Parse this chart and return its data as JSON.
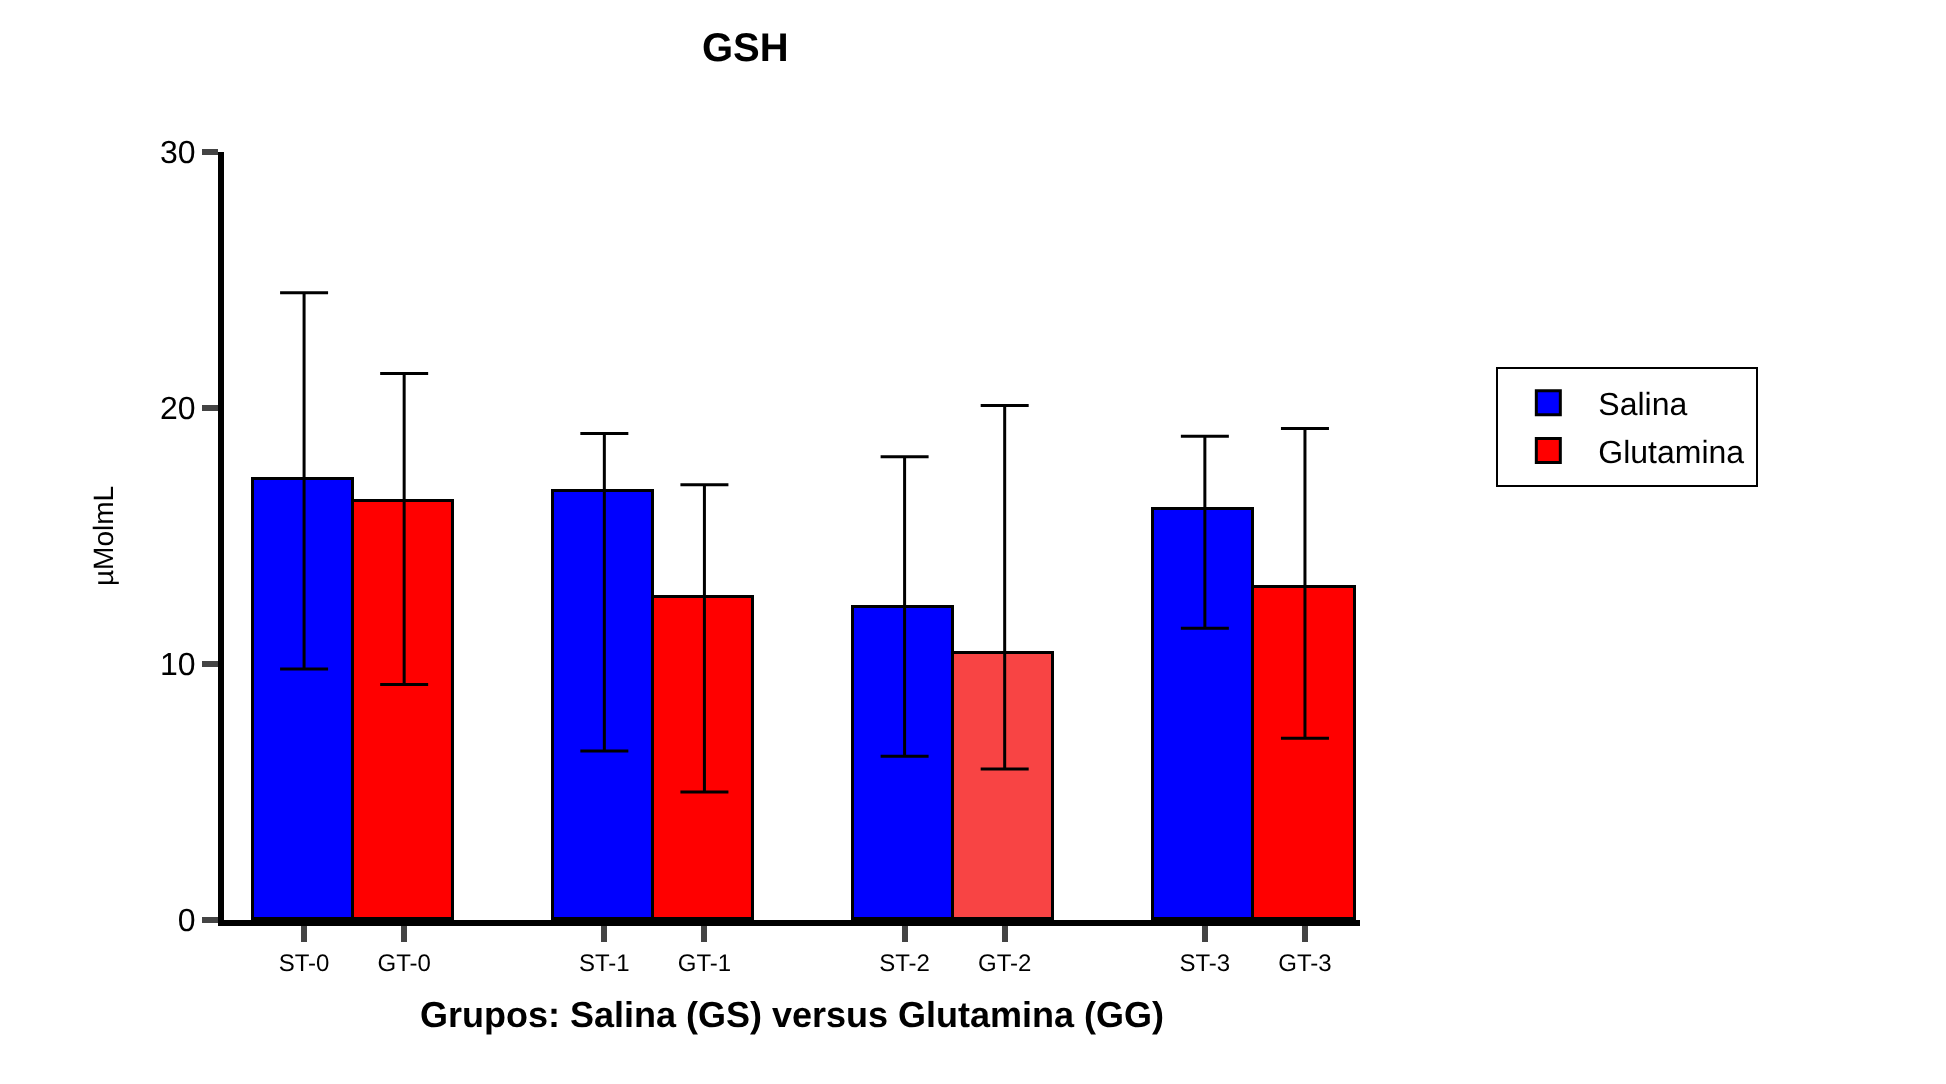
{
  "chart_data": {
    "type": "bar",
    "title": "GSH",
    "xlabel": "Grupos: Salina (GS) versus Glutamina (GG)",
    "ylabel": "µMolmL",
    "categories": [
      "ST-0",
      "GT-0",
      null,
      "ST-1",
      "GT-1",
      null,
      "ST-2",
      "GT-2",
      null,
      "ST-3",
      "GT-3"
    ],
    "series": [
      {
        "name": "Salina",
        "color": "#0000ff",
        "values": [
          17.2,
          null,
          null,
          16.7,
          null,
          null,
          12.2,
          null,
          null,
          16.0,
          null
        ],
        "errors": [
          [
            9.8,
            24.5
          ],
          null,
          null,
          [
            6.6,
            19.0
          ],
          null,
          null,
          [
            6.4,
            18.1
          ],
          null,
          null,
          [
            11.4,
            18.9
          ],
          null
        ]
      },
      {
        "name": "Glutamina",
        "color": "#ff0000",
        "colors": [
          null,
          "#ff0000",
          null,
          null,
          "#ff0000",
          null,
          null,
          "#f84444",
          null,
          null,
          "#ff0000"
        ],
        "values": [
          null,
          16.35,
          null,
          null,
          12.6,
          null,
          null,
          10.4,
          null,
          null,
          13.0
        ],
        "errors": [
          null,
          [
            9.2,
            21.35
          ],
          null,
          null,
          [
            5.0,
            17.0
          ],
          null,
          null,
          [
            5.9,
            20.1
          ],
          null,
          null,
          [
            7.1,
            19.2
          ]
        ]
      }
    ],
    "ylim": [
      0,
      30
    ],
    "yticks": [
      0,
      10,
      20,
      30
    ],
    "legend": "right"
  }
}
